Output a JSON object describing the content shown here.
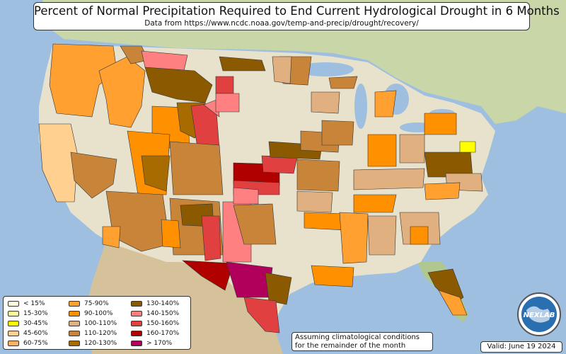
{
  "title": "Percent of Normal Precipitation Required to End Current Hydrological Drought in 6 Months",
  "subtitle": "Data from https://www.ncdc.noaa.gov/temp-and-precip/drought/recovery/",
  "legend": [
    {
      "label": "< 15%",
      "color": "#ffffe0"
    },
    {
      "label": "15-30%",
      "color": "#ffff99"
    },
    {
      "label": "30-45%",
      "color": "#ffff00"
    },
    {
      "label": "45-60%",
      "color": "#ffd090"
    },
    {
      "label": "60-75%",
      "color": "#ffb060"
    },
    {
      "label": "75-90%",
      "color": "#ffa030"
    },
    {
      "label": "90-100%",
      "color": "#ff9000"
    },
    {
      "label": "100-110%",
      "color": "#e0b080"
    },
    {
      "label": "110-120%",
      "color": "#c88438"
    },
    {
      "label": "120-130%",
      "color": "#a86b00"
    },
    {
      "label": "130-140%",
      "color": "#8b5a00"
    },
    {
      "label": "140-150%",
      "color": "#ff8080"
    },
    {
      "label": "150-160%",
      "color": "#e04040"
    },
    {
      "label": "160-170%",
      "color": "#b00000"
    },
    {
      "label": "> 170%",
      "color": "#b0005c"
    }
  ],
  "note_line1": "Assuming climatological conditions",
  "note_line2": "for the remainder of the month",
  "valid": "Valid: June 19 2024",
  "logo_text": "NEXLAB",
  "colors": {
    "ocean": "#9fbfe0",
    "land": "#e8e2cc",
    "terrain_green": "#a9c08a",
    "terrain_tan": "#d9c9a0",
    "canada": "#c8d6a8",
    "mexico": "#d6c29a"
  }
}
